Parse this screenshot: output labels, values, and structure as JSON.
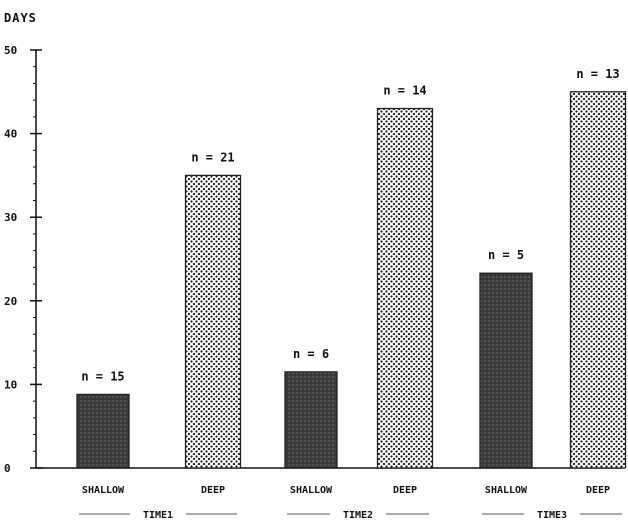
{
  "chart_data": {
    "type": "bar",
    "ylabel": "DAYS",
    "xlabel": "",
    "ylim": [
      0,
      50
    ],
    "yticks": [
      0,
      10,
      20,
      30,
      40,
      50
    ],
    "ytick_labels": [
      "0",
      "10",
      "20",
      "30",
      "40",
      "50"
    ],
    "categories": [
      "SHALLOW",
      "DEEP",
      "SHALLOW",
      "DEEP",
      "SHALLOW",
      "DEEP"
    ],
    "values": [
      8.8,
      35,
      11.5,
      43,
      23.3,
      45
    ],
    "annotations": [
      "n = 15",
      "n = 21",
      "n = 6",
      "n = 14",
      "n = 5",
      "n = 13"
    ],
    "groups": [
      {
        "label": "TIME1",
        "members": [
          0,
          1
        ]
      },
      {
        "label": "TIME2",
        "members": [
          2,
          3
        ]
      },
      {
        "label": "TIME3",
        "members": [
          4,
          5
        ]
      }
    ],
    "bar_styles": [
      "dark",
      "dotted",
      "dark",
      "dotted",
      "dark",
      "dotted"
    ],
    "colors": {
      "dark": "#3a3a3a",
      "dotted_bg": "#ffffff",
      "dotted_dot": "#222222",
      "axis": "#111111"
    }
  }
}
